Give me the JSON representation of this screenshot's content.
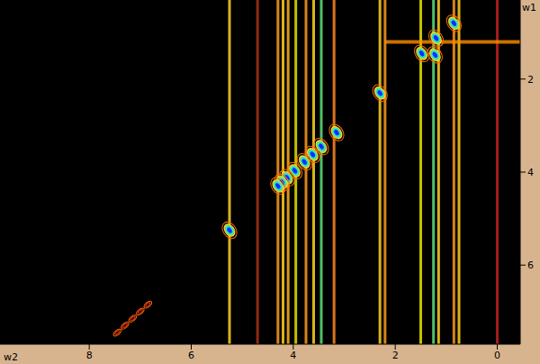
{
  "chart_data": {
    "type": "scatter",
    "x_label": "w2",
    "y_label": "w1",
    "xlim": [
      9.75,
      -0.45
    ],
    "xticks": [
      8,
      6,
      4,
      2,
      0
    ],
    "ylim": [
      0.3,
      7.7
    ],
    "yticks": [
      2,
      4,
      6
    ],
    "grid": false,
    "series": [
      {
        "color": "#0a2cff",
        "marker": "contour",
        "x": [
          0.85,
          1.2,
          1.48,
          1.22,
          2.3,
          3.15,
          3.45,
          3.62,
          3.78,
          3.97,
          4.12,
          4.22,
          4.3,
          5.25
        ],
        "values": [
          0.8,
          1.12,
          1.45,
          1.48,
          2.3,
          3.15,
          3.45,
          3.62,
          3.78,
          3.97,
          4.12,
          4.22,
          4.3,
          5.25
        ]
      },
      {
        "color": "#ff6a00",
        "marker": "contour",
        "x": [
          7.45,
          7.3,
          7.15,
          7.0,
          6.85
        ],
        "values": [
          7.45,
          7.3,
          7.15,
          7.0,
          6.85
        ]
      }
    ],
    "streaks": {
      "x": [
        5.25,
        4.7,
        4.3,
        4.2,
        4.1,
        3.95,
        3.75,
        3.6,
        3.45,
        3.2,
        2.3,
        2.2,
        1.5,
        1.25,
        1.15,
        0.85,
        0.75,
        0.0
      ],
      "colors": [
        "#ffd21e",
        "#a83010",
        "#ff9a1e",
        "#ffd21e",
        "#ffb01e",
        "#e8e000",
        "#ff9a1e",
        "#ffd21e",
        "#5ee07a",
        "#ff8a1e",
        "#ffd21e",
        "#ff9a1e",
        "#e8e000",
        "#5ee07a",
        "#ffd21e",
        "#ff9a1e",
        "#ffd21e",
        "#c02020"
      ]
    },
    "ridge": {
      "y": 1.2,
      "x": [
        2.2,
        -0.45
      ],
      "color": "#ff8c00"
    }
  }
}
